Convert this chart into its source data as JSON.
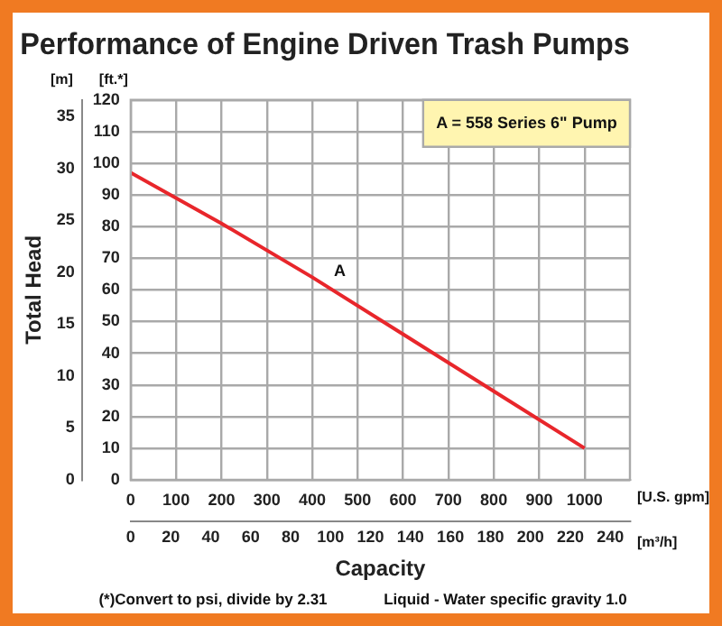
{
  "chart_data": {
    "type": "line",
    "title": "Performance of Engine Driven Trash Pumps",
    "xlabel": "Capacity",
    "y2label": "Total Head",
    "x": [
      0,
      200,
      400,
      600,
      800,
      1000
    ],
    "series": [
      {
        "color": "#e8262b",
        "values": [
          97,
          81,
          64,
          46,
          28,
          10
        ]
      }
    ],
    "xlim": [
      0,
      1100
    ],
    "xticks": [
      0,
      100,
      200,
      300,
      400,
      500,
      600,
      700,
      800,
      900,
      1000
    ],
    "x2lim": [
      0,
      249.8
    ],
    "x2ticks": [
      0,
      20,
      40,
      60,
      80,
      100,
      120,
      140,
      160,
      180,
      200,
      220,
      240
    ],
    "ylim": [
      0,
      120
    ],
    "yticks": [
      0,
      10,
      20,
      30,
      40,
      50,
      60,
      70,
      80,
      90,
      100,
      110,
      120
    ],
    "y2lim": [
      0,
      36.58
    ],
    "y2ticks": [
      0,
      5,
      10,
      15,
      20,
      25,
      30,
      35
    ],
    "grid": true,
    "legend": false,
    "marker": "none",
    "line_style": "solid",
    "annotations": [
      {
        "text": "A",
        "x": 440,
        "y": 60.4
      },
      "A = 558 Series 6\" Pump",
      "[m]",
      "[ft.*]",
      "[U.S. gpm]",
      "[m³/h]",
      "(*)Convert to psi, divide by 2.31",
      "Liquid - Water specific gravity 1.0"
    ]
  }
}
